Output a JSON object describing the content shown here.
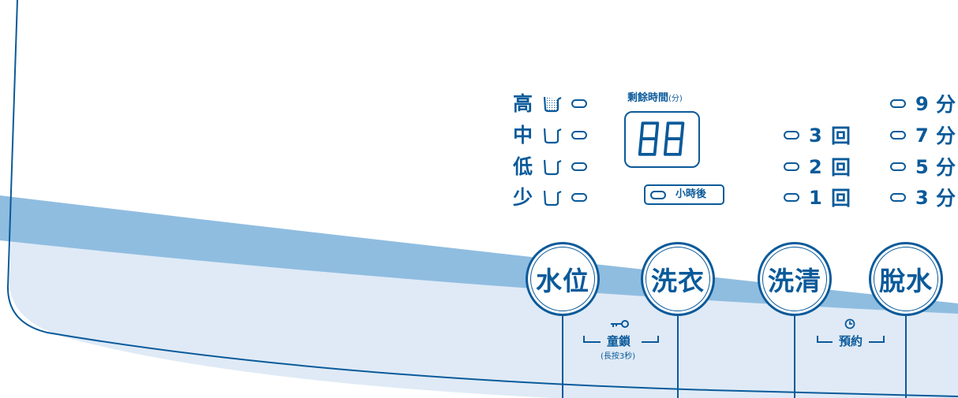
{
  "water_level": {
    "items": [
      {
        "label": "高",
        "filled": true
      },
      {
        "label": "中",
        "filled": false
      },
      {
        "label": "低",
        "filled": false
      },
      {
        "label": "少",
        "filled": false
      }
    ]
  },
  "display": {
    "title": "剩餘時間",
    "unit": "(分)",
    "digits": "88",
    "hours_later": "小時後"
  },
  "rinse": {
    "items": [
      {
        "num": "3",
        "unit": "回"
      },
      {
        "num": "2",
        "unit": "回"
      },
      {
        "num": "1",
        "unit": "回"
      }
    ]
  },
  "spin": {
    "items": [
      {
        "num": "9",
        "unit": "分"
      },
      {
        "num": "7",
        "unit": "分"
      },
      {
        "num": "5",
        "unit": "分"
      },
      {
        "num": "3",
        "unit": "分"
      }
    ]
  },
  "buttons": {
    "water_level": "水位",
    "wash": "洗衣",
    "rinse": "洗清",
    "spin": "脫水"
  },
  "child_lock": {
    "label": "童鎖",
    "hint": "(長按3秒)"
  },
  "timer": {
    "label": "預約"
  },
  "colors": {
    "primary": "#0a5a9a",
    "band": "#8fbde0",
    "panel_fill": "#dfeaf6"
  }
}
